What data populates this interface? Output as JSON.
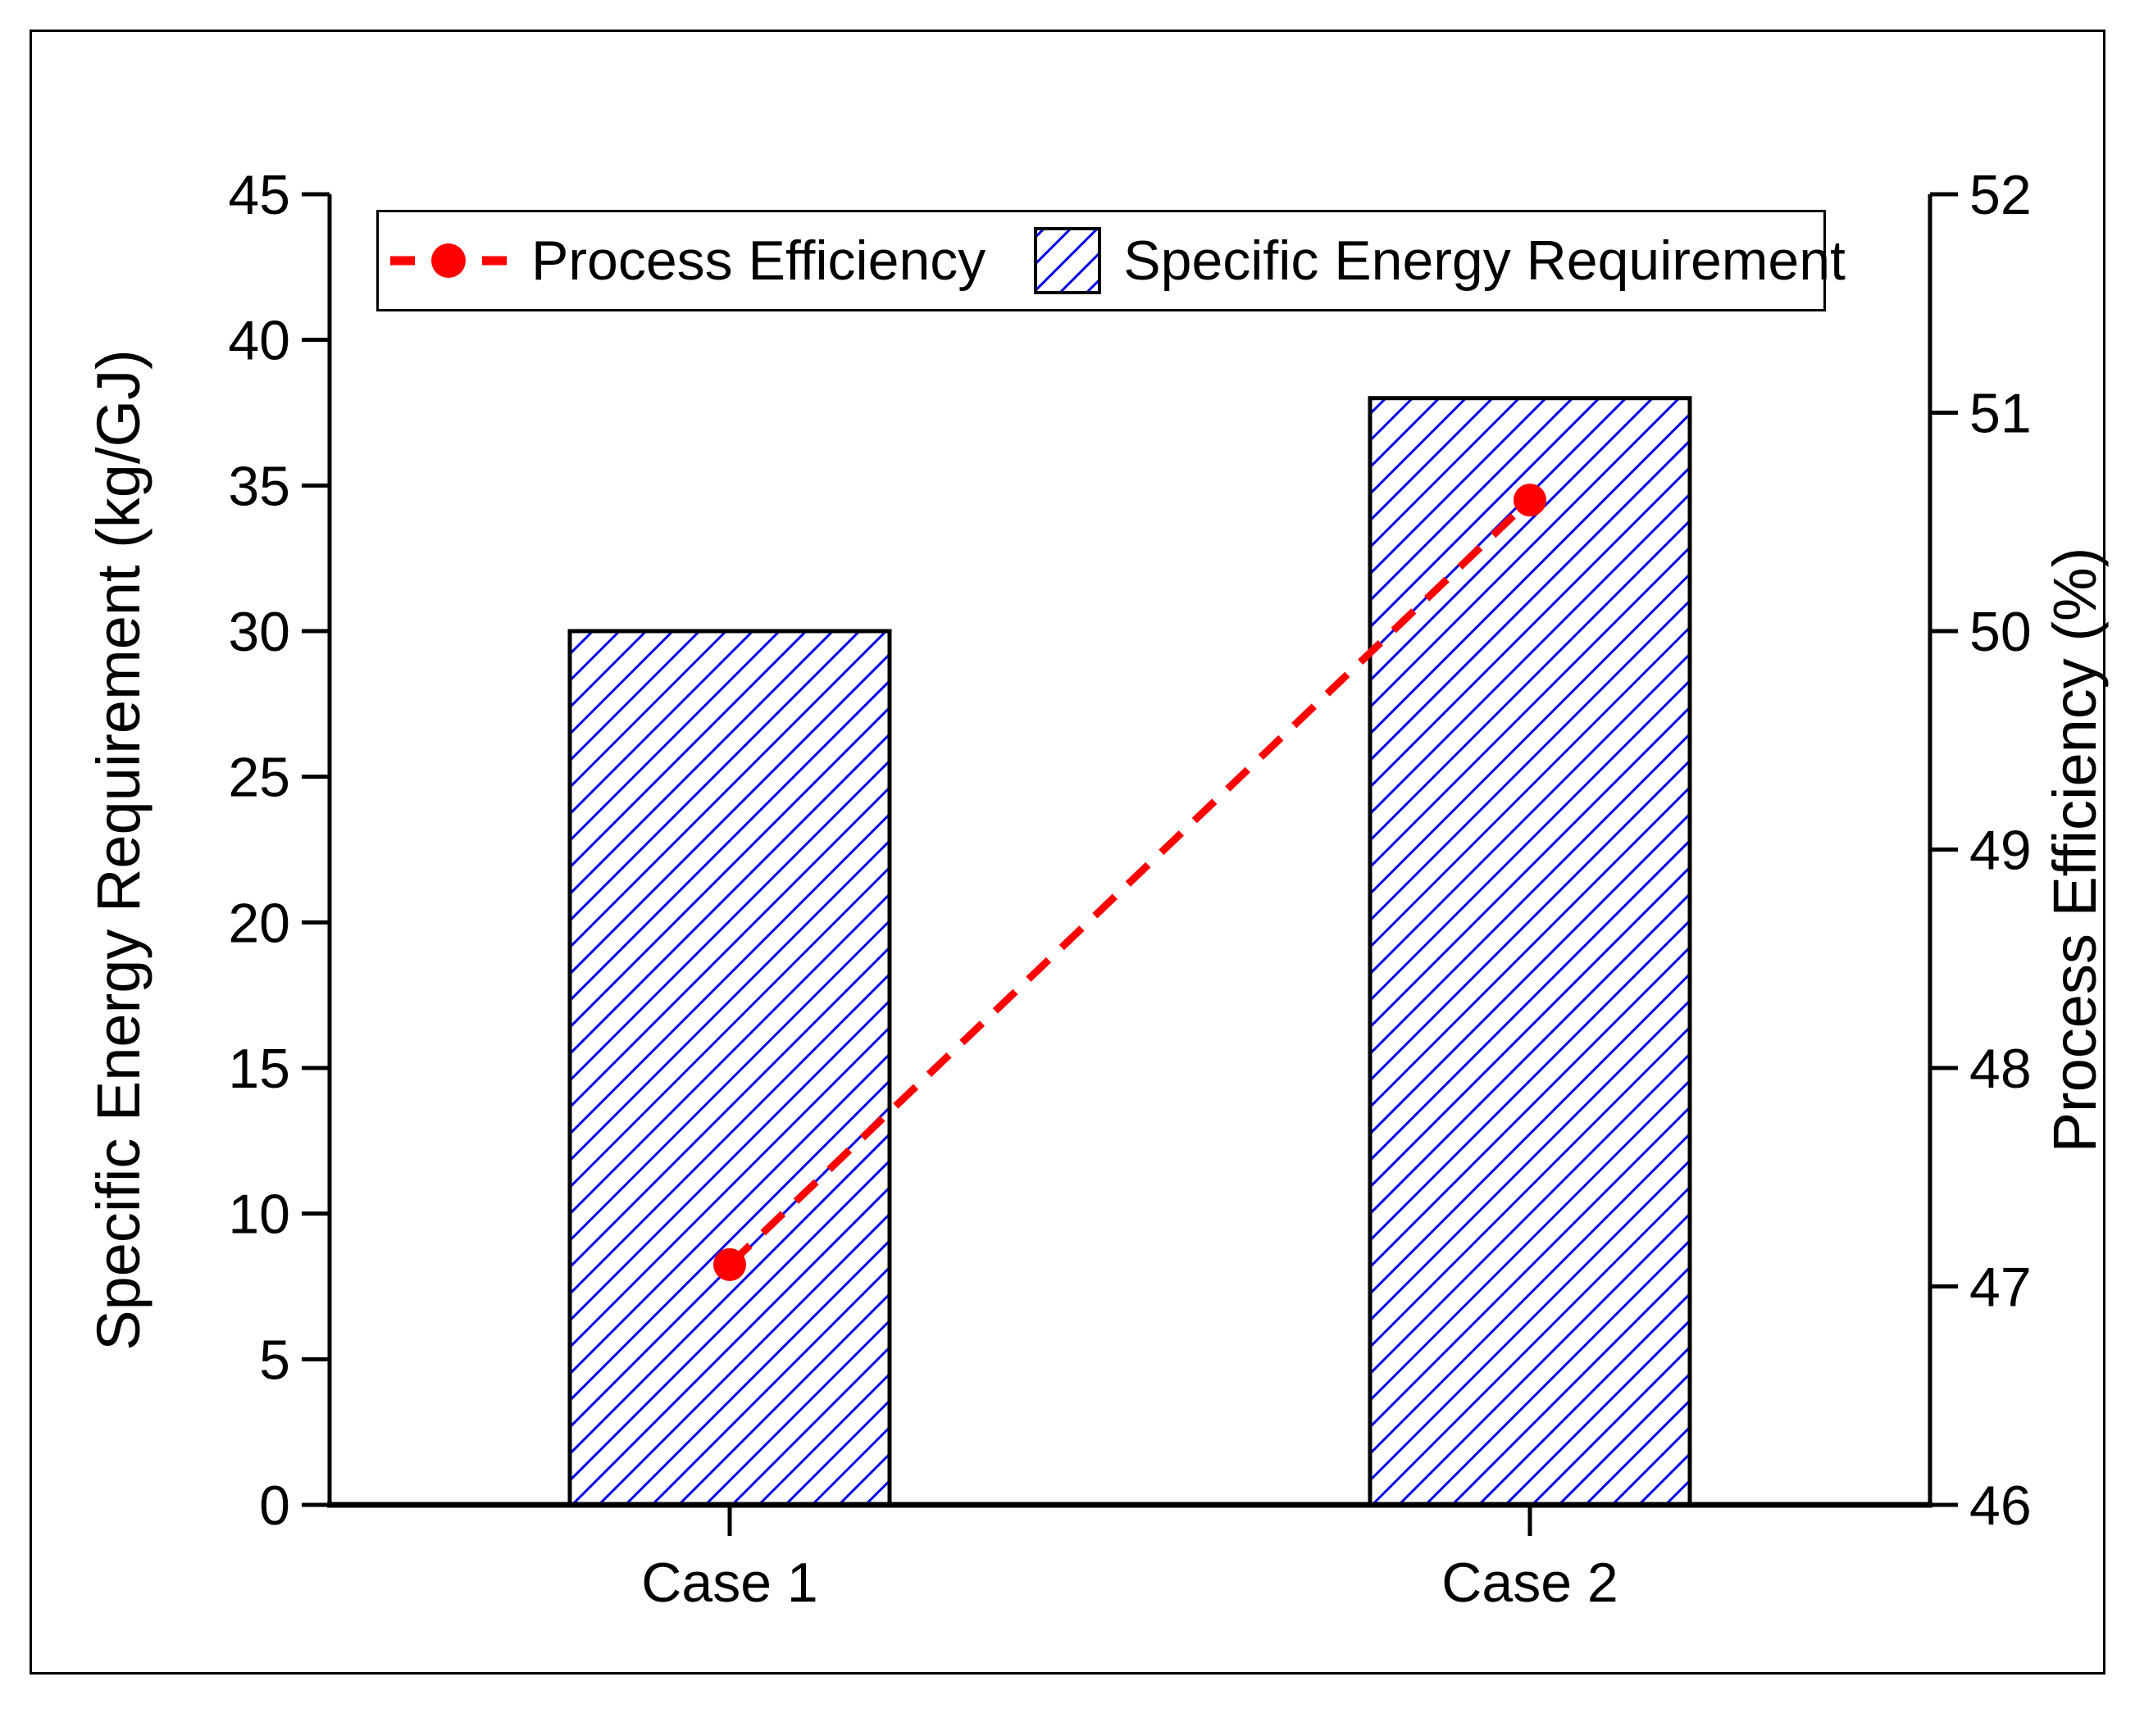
{
  "legend": {
    "items": [
      {
        "label": "Process Efficiency",
        "marker": "red-dashed-line-with-dot"
      },
      {
        "label": "Specific Energy Requirement",
        "marker": "blue-hatched-box"
      }
    ]
  },
  "chart_data": {
    "type": "bar",
    "subtype": "dual-axis bar + dashed line",
    "categories": [
      "Case 1",
      "Case 2"
    ],
    "series": [
      {
        "name": "Specific Energy Requirement",
        "type": "bar",
        "axis": "left",
        "values": [
          30,
          38
        ],
        "fill": "diagonal-hatch",
        "color": "#0000EE"
      },
      {
        "name": "Process Efficiency",
        "type": "line",
        "axis": "right",
        "values": [
          47.1,
          50.6
        ],
        "style": "dashed",
        "marker": "circle",
        "color": "#FF0000"
      }
    ],
    "left_axis": {
      "label": "Specific Energy Requirement (kg/GJ)",
      "min": 0,
      "max": 45,
      "ticks": [
        0,
        5,
        10,
        15,
        20,
        25,
        30,
        35,
        40,
        45
      ]
    },
    "right_axis": {
      "label": "Process Efficiency (%)",
      "min": 46,
      "max": 52,
      "ticks": [
        46,
        47,
        48,
        49,
        50,
        51,
        52
      ]
    },
    "grid": false,
    "legend_position": "top"
  },
  "colors": {
    "bar_hatch": "#0000EE",
    "line": "#FF0000",
    "axis": "#000000",
    "text": "#000000",
    "background": "#FFFFFF"
  }
}
